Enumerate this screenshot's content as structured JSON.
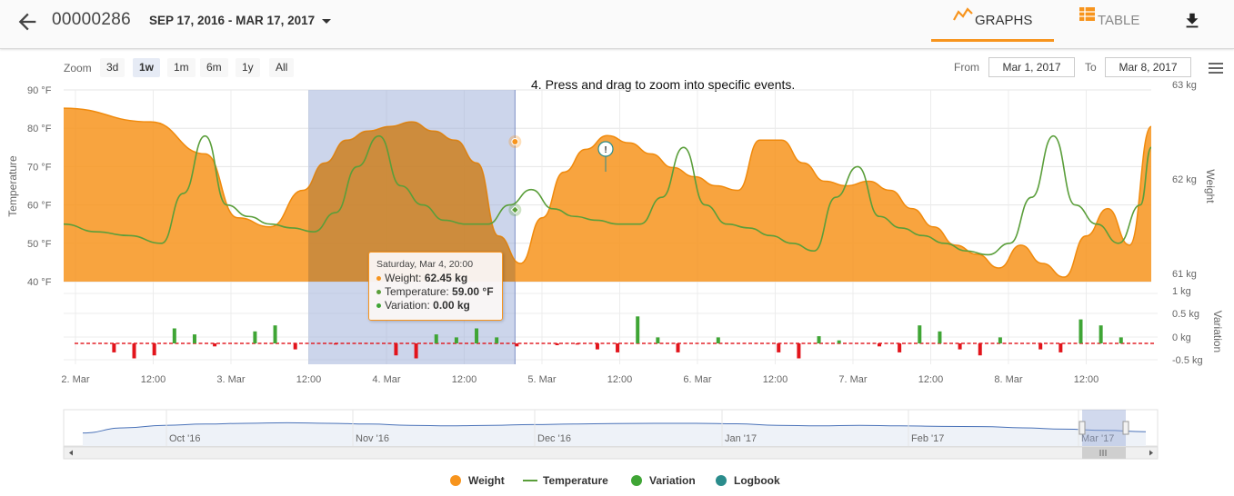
{
  "header": {
    "device_id": "00000286",
    "date_range": "SEP 17, 2016 - MAR 17, 2017",
    "tabs": [
      {
        "label": "GRAPHS",
        "active": true,
        "icon": "line-chart-icon"
      },
      {
        "label": "TABLE",
        "active": false,
        "icon": "table-icon"
      }
    ],
    "accent_color": "#f7941d"
  },
  "toolbar": {
    "zoom_label": "Zoom",
    "zoom_options": [
      "3d",
      "1w",
      "1m",
      "6m",
      "1y",
      "All"
    ],
    "zoom_active": "1w",
    "from_label": "From",
    "from_value": "Mar 1, 2017",
    "to_label": "To",
    "to_value": "Mar 8, 2017"
  },
  "annotation": "4. Press and drag to zoom into specific events.",
  "chart_data": {
    "type": "line",
    "colors": {
      "weight": "#f7941d",
      "temperature": "#5a9e3a",
      "variation_pos": "#3fa535",
      "variation_neg": "#e2141b",
      "logbook": "#2a8c8c",
      "selection": "#9aabd8"
    },
    "temperature_axis": {
      "title": "Temperature",
      "ticks": [
        "90 °F",
        "80 °F",
        "70 °F",
        "60 °F",
        "50 °F",
        "40 °F"
      ],
      "range": [
        40,
        90
      ]
    },
    "weight_axis": {
      "title": "Weight",
      "ticks": [
        "63 kg",
        "62 kg",
        "61 kg"
      ],
      "range": [
        61,
        63
      ]
    },
    "variation_axis": {
      "title": "Variation",
      "ticks": [
        "1 kg",
        "0.5 kg",
        "0 kg",
        "-0.5 kg"
      ],
      "range": [
        -0.5,
        1
      ]
    },
    "x_ticks": [
      "2. Mar",
      "12:00",
      "3. Mar",
      "12:00",
      "4. Mar",
      "12:00",
      "5. Mar",
      "12:00",
      "6. Mar",
      "12:00",
      "7. Mar",
      "12:00",
      "8. Mar",
      "12:00"
    ],
    "series": [
      {
        "name": "Weight",
        "kind": "area"
      },
      {
        "name": "Temperature",
        "kind": "line"
      },
      {
        "name": "Variation",
        "kind": "column"
      },
      {
        "name": "Logbook",
        "kind": "flag"
      }
    ],
    "weight_t": [
      0,
      0.08,
      0.13,
      0.16,
      0.19,
      0.22,
      0.24,
      0.26,
      0.28,
      0.3,
      0.32,
      0.34,
      0.36,
      0.38,
      0.4,
      0.42,
      0.44,
      0.46,
      0.48,
      0.5,
      0.52,
      0.54,
      0.56,
      0.58,
      0.6,
      0.62,
      0.64,
      0.66,
      0.68,
      0.7,
      0.72,
      0.74,
      0.76,
      0.78,
      0.8,
      0.82,
      0.84,
      0.86,
      0.88,
      0.9,
      0.92,
      0.94,
      0.96,
      0.98,
      1.0
    ],
    "weight_kg": [
      62.8,
      62.65,
      62.3,
      61.6,
      61.5,
      61.9,
      62.2,
      62.45,
      62.55,
      62.6,
      62.65,
      62.55,
      62.45,
      62.2,
      61.4,
      61.1,
      61.6,
      62.1,
      62.35,
      62.5,
      62.42,
      62.3,
      62.15,
      62.05,
      61.95,
      61.9,
      62.45,
      62.45,
      62.2,
      62.0,
      61.95,
      62.0,
      61.9,
      61.7,
      61.5,
      61.3,
      61.2,
      61.05,
      61.3,
      61.1,
      60.95,
      61.4,
      61.7,
      61.3,
      62.6
    ],
    "temperature_t": [
      0,
      0.03,
      0.06,
      0.09,
      0.11,
      0.13,
      0.15,
      0.17,
      0.19,
      0.21,
      0.23,
      0.25,
      0.27,
      0.29,
      0.31,
      0.33,
      0.35,
      0.37,
      0.39,
      0.41,
      0.43,
      0.45,
      0.47,
      0.49,
      0.51,
      0.53,
      0.55,
      0.57,
      0.59,
      0.61,
      0.63,
      0.65,
      0.67,
      0.69,
      0.71,
      0.73,
      0.75,
      0.77,
      0.79,
      0.81,
      0.83,
      0.85,
      0.87,
      0.89,
      0.91,
      0.93,
      0.95,
      0.97,
      0.99,
      1.0
    ],
    "temperature_f": [
      55,
      53,
      52,
      50,
      63,
      78,
      60,
      57,
      55,
      54,
      53,
      58,
      70,
      78,
      65,
      60,
      56,
      55,
      55,
      60,
      64,
      59,
      57,
      56,
      55,
      55,
      62,
      75,
      60,
      55,
      54,
      52,
      50,
      48,
      62,
      70,
      57,
      54,
      52,
      50,
      48,
      47,
      50,
      62,
      78,
      60,
      55,
      50,
      60,
      75
    ],
    "variation_kg": [
      0.0,
      0.0,
      -0.15,
      -0.25,
      -0.2,
      0.25,
      0.15,
      -0.05,
      0.0,
      0.2,
      0.3,
      -0.1,
      0.0,
      -0.02,
      0.0,
      0.0,
      -0.2,
      -0.25,
      0.15,
      0.1,
      0.25,
      0.1,
      -0.05,
      0.0,
      -0.03,
      -0.02,
      -0.1,
      -0.15,
      0.45,
      0.1,
      -0.15,
      0.0,
      0.1,
      0.0,
      0.0,
      -0.15,
      -0.25,
      0.12,
      0.05,
      0.0,
      -0.05,
      -0.15,
      0.3,
      0.2,
      -0.1,
      -0.2,
      0.1,
      0.0,
      -0.1,
      -0.15,
      0.4,
      0.3,
      0.1,
      0.0
    ],
    "selection": {
      "from_t": 0.225,
      "to_t": 0.415
    },
    "tooltip": {
      "title": "Saturday, Mar 4, 20:00",
      "rows": [
        {
          "label": "Weight:",
          "value": "62.45 kg",
          "color": "#f7941d"
        },
        {
          "label": "Temperature:",
          "value": "59.00 °F",
          "color": "#5a9e3a"
        },
        {
          "label": "Variation:",
          "value": "0.00 kg",
          "color": "#3fa535"
        }
      ]
    },
    "navigator": {
      "labels": [
        "Oct '16",
        "Nov '16",
        "Dec '16",
        "Jan '17",
        "Feb '17",
        "Mar '17"
      ],
      "values": [
        0.3,
        0.5,
        0.6,
        0.65,
        0.68,
        0.7,
        0.68,
        0.65,
        0.6,
        0.58,
        0.6,
        0.63,
        0.65,
        0.67,
        0.68,
        0.68,
        0.66,
        0.6,
        0.58,
        0.6,
        0.58,
        0.56,
        0.55,
        0.5,
        0.45,
        0.4,
        0.35
      ]
    }
  },
  "legend": [
    {
      "label": "Weight",
      "color": "#f7941d",
      "shape": "dot"
    },
    {
      "label": "Temperature",
      "color": "#5a9e3a",
      "shape": "line"
    },
    {
      "label": "Variation",
      "color": "#3fa535",
      "shape": "dot"
    },
    {
      "label": "Logbook",
      "color": "#2a8c8c",
      "shape": "dot"
    }
  ]
}
